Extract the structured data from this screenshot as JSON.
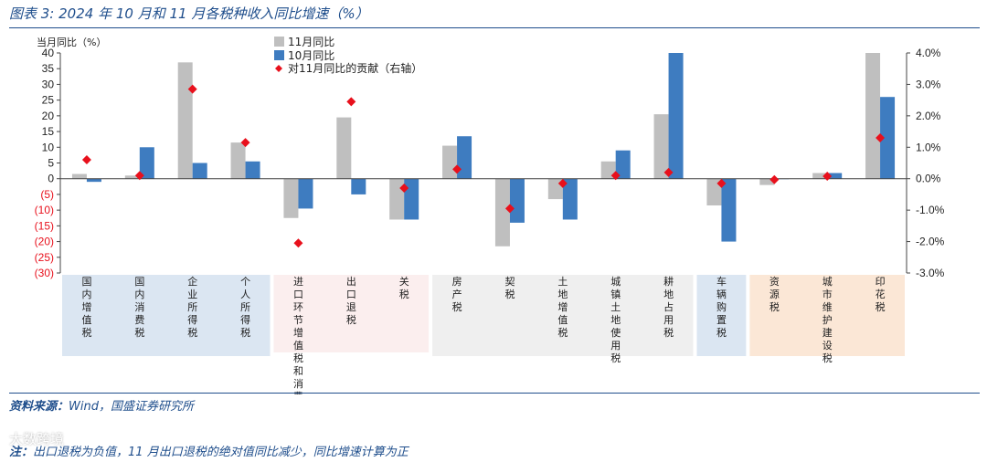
{
  "header": {
    "title": "图表 3:  2024 年 10 月和 11 月各税种收入同比增速（%）"
  },
  "footer": {
    "source_label": "资料来源：",
    "source_text": "Wind，国盛证券研究所",
    "note_label": "注：",
    "note_text": "出口退税为负值，11 月出口退税的绝对值同比减少，同比增速计算为正",
    "watermark": "大数跨境"
  },
  "colors": {
    "nov": "#bfbfbf",
    "oct": "#3e7cc0",
    "contrib": "#e8101c",
    "neg_tick": "#e8101c",
    "group_blue": "#dbe6f2",
    "group_pink": "#fbeeee",
    "group_gray": "#efefef",
    "group_orange": "#fbe7d6"
  },
  "chart_data": {
    "type": "bar",
    "ylabel_left": "当月同比（%）",
    "ylim_left": [
      -30,
      40
    ],
    "yticks_left": [
      "40",
      "35",
      "30",
      "25",
      "20",
      "15",
      "10",
      "5",
      "0",
      "(5)",
      "(10)",
      "(15)",
      "(20)",
      "(25)",
      "(30)"
    ],
    "ylim_right": [
      -3.0,
      4.0
    ],
    "yticks_right": [
      "4.0%",
      "3.0%",
      "2.0%",
      "1.0%",
      "0.0%",
      "-1.0%",
      "-2.0%",
      "-3.0%"
    ],
    "categories": [
      "国内增值税",
      "国内消费税",
      "企业所得税",
      "个人所得税",
      "进口环节增值税和消费税",
      "出口退税",
      "关税",
      "房产税",
      "契税",
      "土地增值税",
      "城镇土地使用税",
      "耕地占用税",
      "车辆购置税",
      "资源税",
      "城市维护建设税",
      "印花税"
    ],
    "category_groups": [
      {
        "name": "blue",
        "start": 0,
        "end": 3
      },
      {
        "name": "pink",
        "start": 4,
        "end": 6
      },
      {
        "name": "gray",
        "start": 7,
        "end": 11
      },
      {
        "name": "blue",
        "start": 12,
        "end": 12
      },
      {
        "name": "orange",
        "start": 13,
        "end": 15
      }
    ],
    "series": [
      {
        "name": "11月同比",
        "axis": "left",
        "values": [
          1.5,
          1.0,
          37.0,
          11.5,
          -12.5,
          19.5,
          -13.0,
          10.5,
          -21.5,
          -6.5,
          5.5,
          20.5,
          -8.5,
          -2.0,
          1.8,
          40.0
        ]
      },
      {
        "name": "10月同比",
        "axis": "left",
        "values": [
          -1.0,
          10.0,
          5.0,
          5.5,
          -9.5,
          -5.0,
          -13.0,
          13.5,
          -14.0,
          -13.0,
          9.0,
          40.0,
          -20.0,
          0.0,
          1.8,
          26.0
        ]
      },
      {
        "name": "对11月同比的贡献（右轴）",
        "axis": "right",
        "values": [
          0.6,
          0.1,
          2.85,
          1.15,
          -2.05,
          2.45,
          -0.3,
          0.3,
          -0.95,
          -0.15,
          0.1,
          0.2,
          -0.15,
          -0.03,
          0.08,
          1.3
        ]
      }
    ],
    "legend": [
      "11月同比",
      "10月同比",
      "对11月同比的贡献（右轴）"
    ],
    "legend_position": "top-left"
  }
}
